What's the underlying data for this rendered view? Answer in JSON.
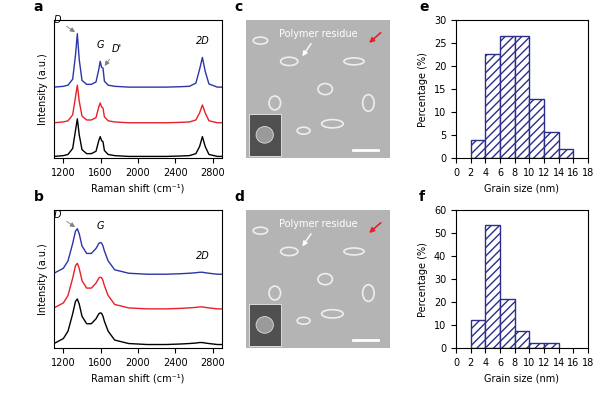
{
  "chart_data": [
    {
      "type": "line",
      "title": "a",
      "x_label": "Raman shift (cm⁻¹)",
      "y_label": "Intensity (a.u.)",
      "x": [
        1100,
        1200,
        1250,
        1300,
        1330,
        1350,
        1370,
        1400,
        1450,
        1500,
        1550,
        1580,
        1595,
        1610,
        1625,
        1640,
        1680,
        1750,
        1900,
        2100,
        2300,
        2450,
        2550,
        2620,
        2660,
        2690,
        2720,
        2760,
        2850,
        2900
      ],
      "series": [
        {
          "color": "#000000",
          "values": [
            0.05,
            0.07,
            0.1,
            0.25,
            0.7,
            1.0,
            0.6,
            0.22,
            0.12,
            0.12,
            0.18,
            0.45,
            0.55,
            0.45,
            0.42,
            0.2,
            0.1,
            0.07,
            0.05,
            0.05,
            0.05,
            0.06,
            0.07,
            0.12,
            0.3,
            0.55,
            0.3,
            0.1,
            0.05,
            0.05
          ]
        },
        {
          "color": "#e8202a",
          "values": [
            0.9,
            0.92,
            0.95,
            1.1,
            1.55,
            1.85,
            1.45,
            1.07,
            0.97,
            0.97,
            1.03,
            1.3,
            1.4,
            1.3,
            1.27,
            1.05,
            0.95,
            0.92,
            0.9,
            0.9,
            0.9,
            0.91,
            0.92,
            0.97,
            1.15,
            1.35,
            1.15,
            0.95,
            0.9,
            0.9
          ]
        },
        {
          "color": "#2b35a8",
          "values": [
            1.8,
            1.82,
            1.85,
            2.0,
            2.6,
            3.15,
            2.5,
            1.97,
            1.87,
            1.87,
            1.93,
            2.25,
            2.45,
            2.3,
            2.28,
            1.95,
            1.85,
            1.82,
            1.8,
            1.8,
            1.8,
            1.81,
            1.82,
            1.9,
            2.25,
            2.55,
            2.2,
            1.88,
            1.8,
            1.8
          ]
        }
      ],
      "annotations": [
        {
          "text": "D",
          "x": 1350,
          "y": 3.15
        },
        {
          "text": "G",
          "x": 1595,
          "y": 2.45
        },
        {
          "text": "D'",
          "x": 1625,
          "y": 2.28
        },
        {
          "text": "2D",
          "x": 2690,
          "y": 2.55
        }
      ],
      "xlim": [
        1100,
        2900
      ],
      "xticks": [
        1200,
        1600,
        2000,
        2400,
        2800
      ],
      "ylim": [
        0,
        3.5
      ],
      "tick_labels": "x"
    },
    {
      "type": "line",
      "title": "b",
      "x_label": "Raman shift (cm⁻¹)",
      "y_label": "Intensity (a.u.)",
      "x": [
        1100,
        1200,
        1250,
        1300,
        1330,
        1350,
        1370,
        1400,
        1450,
        1500,
        1550,
        1580,
        1595,
        1610,
        1625,
        1640,
        1680,
        1750,
        1900,
        2100,
        2300,
        2450,
        2550,
        2620,
        2660,
        2690,
        2720,
        2760,
        2850,
        2900
      ],
      "series": [
        {
          "color": "#000000",
          "values": [
            0.1,
            0.2,
            0.35,
            0.7,
            0.95,
            1.0,
            0.9,
            0.65,
            0.5,
            0.5,
            0.6,
            0.7,
            0.72,
            0.71,
            0.65,
            0.55,
            0.35,
            0.17,
            0.1,
            0.08,
            0.08,
            0.09,
            0.1,
            0.11,
            0.12,
            0.12,
            0.11,
            0.1,
            0.08,
            0.08
          ]
        },
        {
          "color": "#e8202a",
          "values": [
            0.82,
            0.92,
            1.07,
            1.42,
            1.67,
            1.72,
            1.62,
            1.37,
            1.22,
            1.22,
            1.32,
            1.42,
            1.44,
            1.43,
            1.37,
            1.27,
            1.07,
            0.89,
            0.82,
            0.8,
            0.8,
            0.81,
            0.82,
            0.83,
            0.84,
            0.84,
            0.83,
            0.82,
            0.8,
            0.8
          ]
        },
        {
          "color": "#2b35a8",
          "values": [
            1.52,
            1.62,
            1.77,
            2.12,
            2.37,
            2.42,
            2.32,
            2.07,
            1.92,
            1.92,
            2.02,
            2.12,
            2.14,
            2.13,
            2.07,
            1.97,
            1.77,
            1.59,
            1.52,
            1.5,
            1.5,
            1.51,
            1.52,
            1.53,
            1.54,
            1.54,
            1.53,
            1.52,
            1.5,
            1.5
          ]
        }
      ],
      "annotations": [
        {
          "text": "D",
          "x": 1350,
          "y": 2.42
        },
        {
          "text": "G",
          "x": 1595,
          "y": 2.14
        },
        {
          "text": "2D",
          "x": 2690,
          "y": 1.54
        }
      ],
      "xlim": [
        1100,
        2900
      ],
      "xticks": [
        1200,
        1600,
        2000,
        2400,
        2800
      ],
      "ylim": [
        0,
        2.8
      ],
      "tick_labels": "x"
    },
    {
      "type": "image",
      "title": "c",
      "annotations": [
        {
          "text": "Polymer residue"
        }
      ]
    },
    {
      "type": "image",
      "title": "d",
      "annotations": [
        {
          "text": "Polymer residue"
        }
      ]
    },
    {
      "type": "histogram",
      "title": "e",
      "x_label": "Grain size (nm)",
      "y_label": "Percentage (%)",
      "bins": [
        2,
        4,
        6,
        8,
        10,
        12,
        14,
        16
      ],
      "values": [
        4,
        22.5,
        26.5,
        26.5,
        12.8,
        5.8,
        2
      ],
      "color": "#2b2f8a",
      "xlim": [
        0,
        18
      ],
      "xticks": [
        0,
        2,
        4,
        6,
        8,
        10,
        12,
        14,
        16,
        18
      ],
      "ylim": [
        0,
        30
      ],
      "yticks": [
        0,
        5,
        10,
        15,
        20,
        25,
        30
      ]
    },
    {
      "type": "histogram",
      "title": "f",
      "x_label": "Grain size (nm)",
      "y_label": "Percentage (%)",
      "bins": [
        2,
        4,
        6,
        8,
        10,
        12,
        14
      ],
      "values": [
        12.5,
        53.5,
        21.5,
        7.5,
        2.5,
        2.5
      ],
      "color": "#2b2f8a",
      "xlim": [
        0,
        18
      ],
      "xticks": [
        0,
        2,
        4,
        6,
        8,
        10,
        12,
        14,
        16,
        18
      ],
      "ylim": [
        0,
        60
      ],
      "yticks": [
        0,
        10,
        20,
        30,
        40,
        50,
        60
      ]
    }
  ]
}
